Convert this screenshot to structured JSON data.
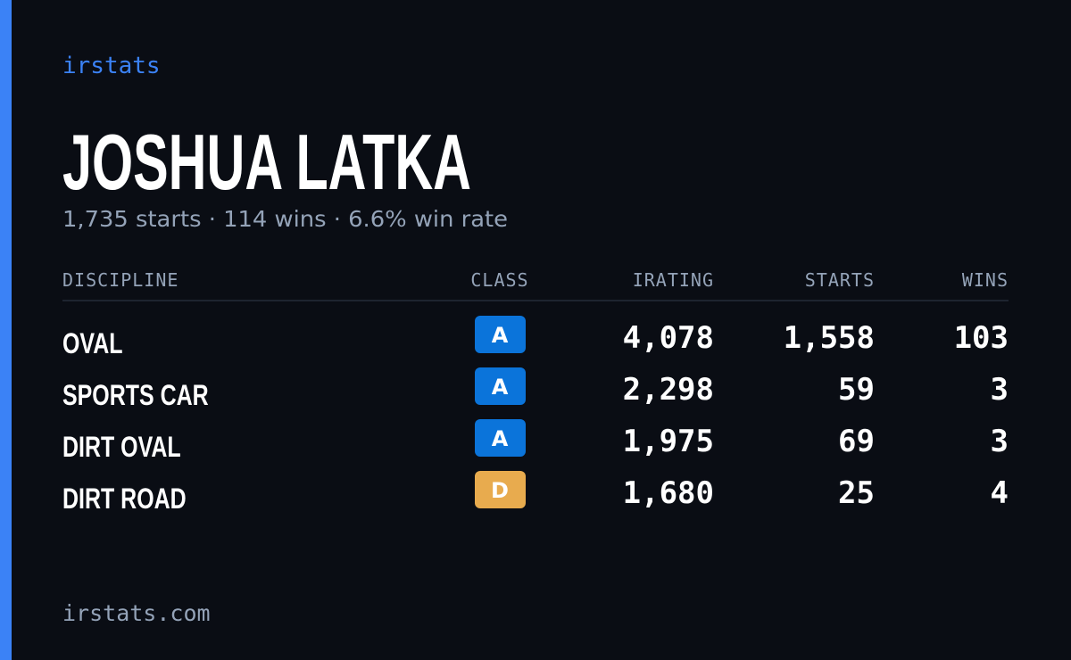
{
  "brand": "irstats",
  "driver": {
    "name": "JOSHUA LATKA",
    "summary": "1,735 starts · 114 wins · 6.6% win rate"
  },
  "table": {
    "headers": [
      "DISCIPLINE",
      "CLASS",
      "IRATING",
      "STARTS",
      "WINS"
    ],
    "rows": [
      {
        "discipline": "OVAL",
        "class": "A",
        "class_color": "#0b74da",
        "irating": "4,078",
        "starts": "1,558",
        "wins": "103"
      },
      {
        "discipline": "SPORTS CAR",
        "class": "A",
        "class_color": "#0b74da",
        "irating": "2,298",
        "starts": "59",
        "wins": "3"
      },
      {
        "discipline": "DIRT OVAL",
        "class": "A",
        "class_color": "#0b74da",
        "irating": "1,975",
        "starts": "69",
        "wins": "3"
      },
      {
        "discipline": "DIRT ROAD",
        "class": "D",
        "class_color": "#e8ab4e",
        "irating": "1,680",
        "starts": "25",
        "wins": "4"
      }
    ]
  },
  "footer": "irstats.com"
}
